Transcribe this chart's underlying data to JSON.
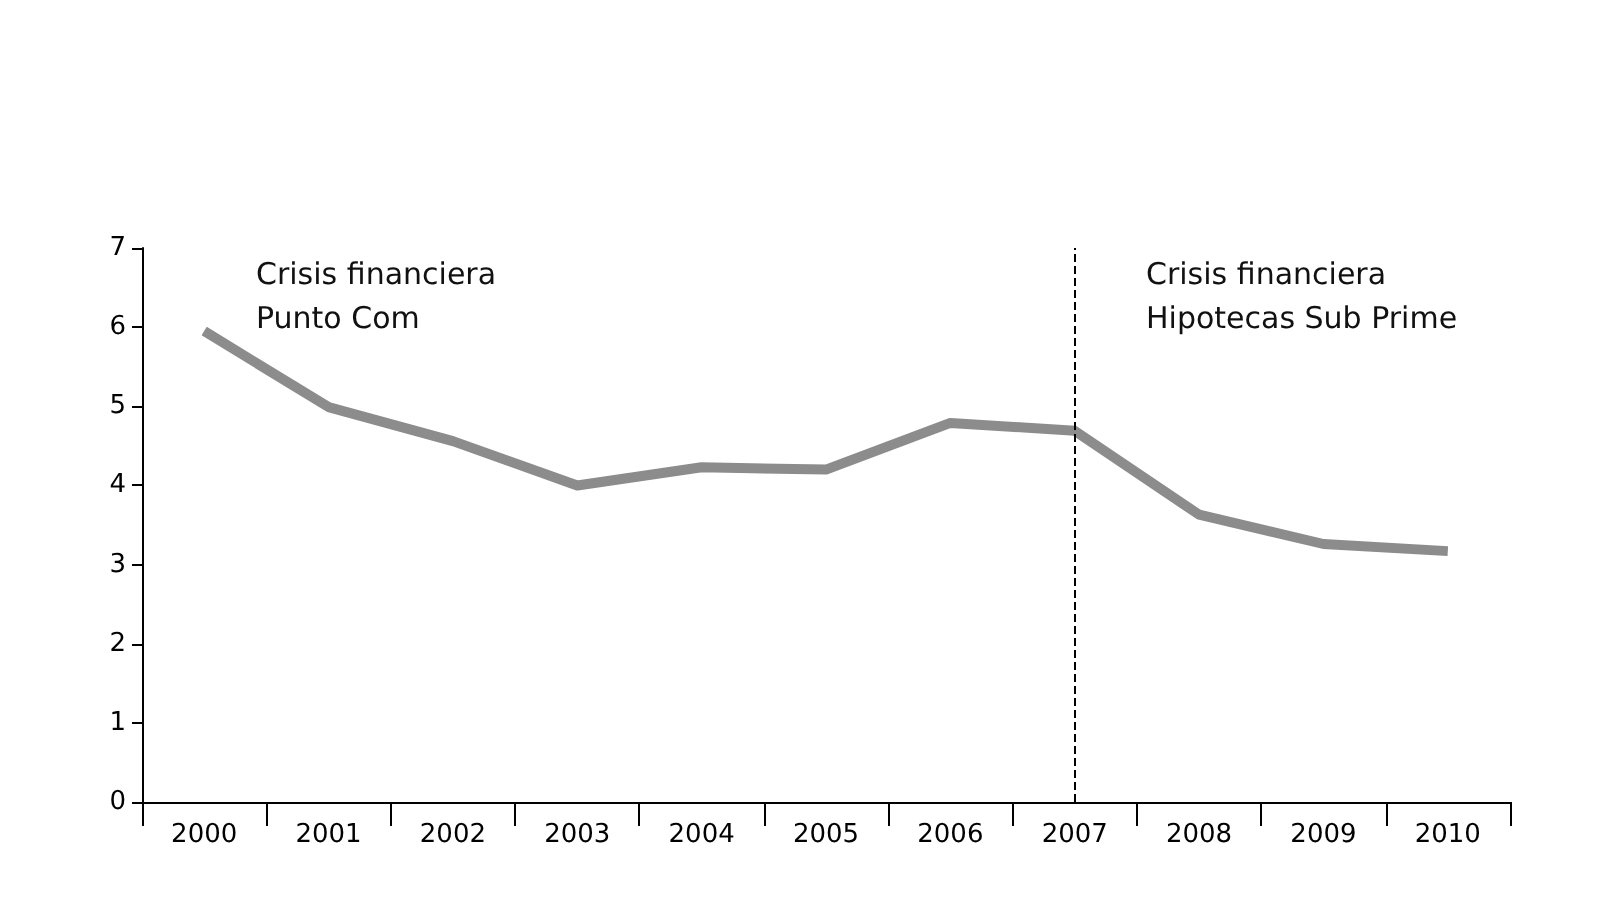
{
  "chart_data": {
    "type": "line",
    "categories": [
      "2000",
      "2001",
      "2002",
      "2003",
      "2004",
      "2005",
      "2006",
      "2007",
      "2008",
      "2009",
      "2010"
    ],
    "series": [
      {
        "color": "#8c8c8c",
        "values": [
          5.95,
          4.99,
          4.56,
          4.0,
          4.23,
          4.2,
          4.79,
          4.69,
          3.63,
          3.26,
          3.17
        ]
      }
    ],
    "ylim": [
      0,
      7
    ],
    "yticks": [
      0,
      1,
      2,
      3,
      4,
      5,
      6,
      7
    ],
    "ref_lines": [
      {
        "axis": "x",
        "value": "2007",
        "color": "#000000",
        "line_style": "dashed"
      }
    ],
    "annotations": [
      "Crisis financiera\nPunto Com",
      "Crisis financiera\nHipotecas Sub Prime"
    ],
    "grid": false,
    "marker": "none",
    "line_style": "solid"
  }
}
